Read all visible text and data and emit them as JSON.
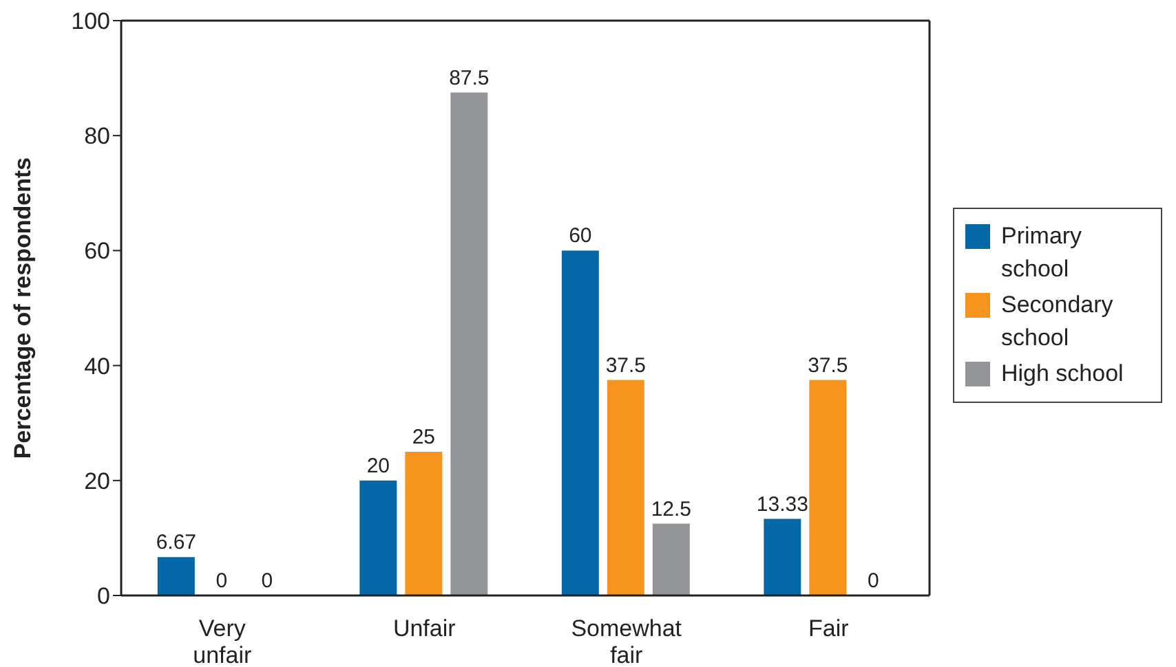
{
  "chart_data": {
    "type": "bar",
    "ylabel": "Percentage of respondents",
    "categories": [
      "Very unfair",
      "Unfair",
      "Somewhat fair",
      "Fair"
    ],
    "series": [
      {
        "name": "Primary school",
        "color": "#0568a6",
        "values": [
          6.67,
          20,
          60,
          13.33
        ]
      },
      {
        "name": "Secondary school",
        "color": "#f7941d",
        "values": [
          0,
          25,
          37.5,
          37.5
        ]
      },
      {
        "name": "High school",
        "color": "#939598",
        "values": [
          0,
          87.5,
          12.5,
          0
        ]
      }
    ],
    "ylim": [
      0,
      100
    ],
    "yticks": [
      0,
      20,
      40,
      60,
      80,
      100
    ],
    "grid": false,
    "legend": "right",
    "data_labels": true
  }
}
